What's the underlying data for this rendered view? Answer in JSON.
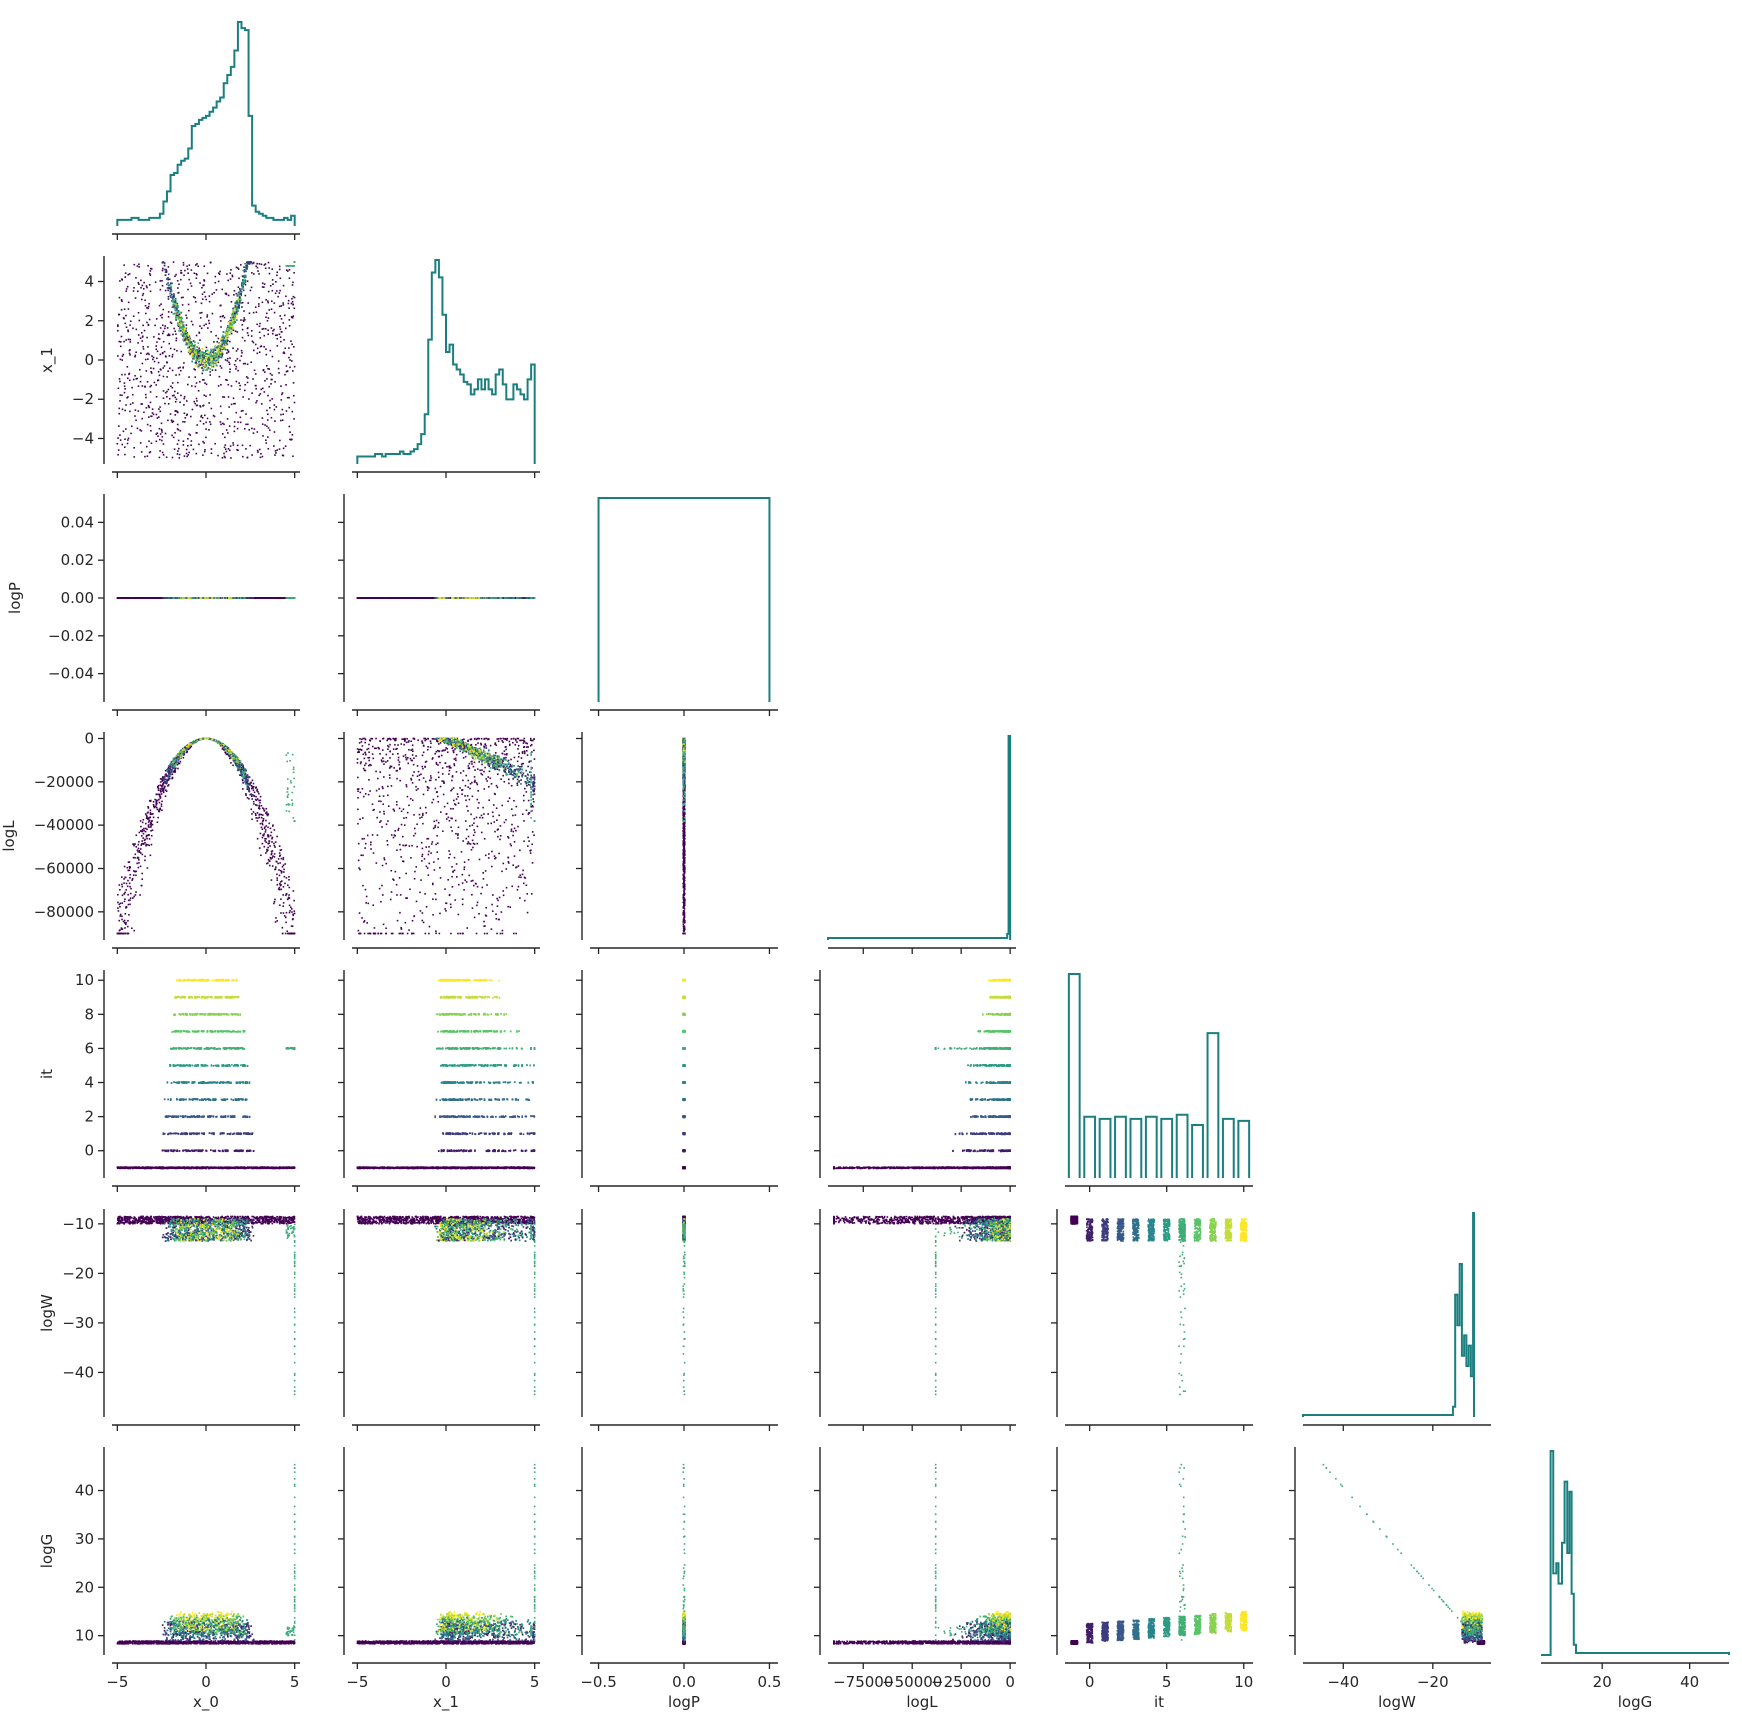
{
  "chart_data": {
    "type": "corner",
    "description_colors": {
      "hist_line": "#1b7f7f",
      "scatter_colormap": "viridis"
    },
    "variables": [
      {
        "key": "x_0",
        "label": "x_0",
        "range": [
          -5.3,
          5.3
        ],
        "ticks": [
          -5,
          0,
          5
        ],
        "tick_labels": [
          "−5",
          "0",
          "5"
        ]
      },
      {
        "key": "x_1",
        "label": "x_1",
        "range": [
          -5.3,
          5.3
        ],
        "ticks": [
          -5,
          0,
          5
        ],
        "tick_labels": [
          "−5",
          "0",
          "5"
        ],
        "y_ticks": [
          -4,
          -2,
          0,
          2,
          4
        ],
        "y_tick_labels": [
          "−4",
          "−2",
          "0",
          "2",
          "4"
        ]
      },
      {
        "key": "logP",
        "label": "logP",
        "range": [
          -0.55,
          0.55
        ],
        "ticks": [
          -0.5,
          0.0,
          0.5
        ],
        "tick_labels": [
          "−0.5",
          "0.0",
          "0.5"
        ],
        "y_range": [
          -0.055,
          0.055
        ],
        "y_ticks": [
          -0.04,
          -0.02,
          0.0,
          0.02,
          0.04
        ],
        "y_tick_labels": [
          "−0.04",
          "−0.02",
          "0.00",
          "0.02",
          "0.04"
        ]
      },
      {
        "key": "logL",
        "label": "logL",
        "range": [
          -93000,
          3000
        ],
        "ticks": [
          -75000,
          -50000,
          -25000,
          0
        ],
        "tick_labels": [
          "−75000",
          "−50000",
          "−25000",
          "0"
        ],
        "y_ticks": [
          -80000,
          -60000,
          -40000,
          -20000,
          0
        ],
        "y_tick_labels": [
          "−80000",
          "−60000",
          "−40000",
          "−20000",
          "0"
        ]
      },
      {
        "key": "it",
        "label": "it",
        "range": [
          -1.6,
          10.6
        ],
        "ticks": [
          0,
          5,
          10
        ],
        "tick_labels": [
          "0",
          "5",
          "10"
        ],
        "y_ticks": [
          0,
          2,
          4,
          6,
          8,
          10
        ],
        "y_tick_labels": [
          "0",
          "2",
          "4",
          "6",
          "8",
          "10"
        ]
      },
      {
        "key": "logW",
        "label": "logW",
        "range": [
          -49,
          -7
        ],
        "ticks": [
          -40,
          -20
        ],
        "tick_labels": [
          "−40",
          "−20"
        ],
        "y_ticks": [
          -40,
          -30,
          -20,
          -10
        ],
        "y_tick_labels": [
          "−40",
          "−30",
          "−20",
          "−10"
        ]
      },
      {
        "key": "logG",
        "label": "logG",
        "range": [
          6,
          49
        ],
        "ticks": [
          20,
          40
        ],
        "tick_labels": [
          "20",
          "40"
        ],
        "y_ticks": [
          10,
          20,
          30,
          40
        ],
        "y_tick_labels": [
          "10",
          "20",
          "30",
          "40"
        ]
      }
    ],
    "histograms": {
      "x_0": {
        "edges_range": [
          -5,
          5
        ],
        "counts": [
          3,
          3,
          3,
          3,
          4,
          4,
          3,
          3,
          3,
          4,
          4,
          4,
          6,
          12,
          17,
          25,
          26,
          30,
          32,
          33,
          38,
          49,
          50,
          52,
          53,
          54,
          56,
          58,
          61,
          63,
          70,
          74,
          78,
          86,
          100,
          97,
          96,
          54,
          10,
          7,
          6,
          5,
          4,
          4,
          3,
          3,
          3,
          4,
          3,
          5
        ]
      },
      "x_1": {
        "edges_range": [
          -5,
          5
        ],
        "counts": [
          3,
          3,
          3,
          3,
          3,
          4,
          4,
          3,
          4,
          4,
          4,
          4,
          5,
          4,
          4,
          5,
          6,
          8,
          12,
          20,
          50,
          77,
          82,
          75,
          60,
          45,
          48,
          40,
          38,
          36,
          33,
          32,
          28,
          30,
          34,
          30,
          34,
          30,
          28,
          36,
          38,
          32,
          26,
          26,
          32,
          30,
          28,
          26,
          34,
          40
        ]
      },
      "logP": {
        "edges_range": [
          -0.5,
          0.5
        ],
        "counts": [
          100
        ]
      },
      "logL": {
        "note": "single spike near 0"
      },
      "it": {
        "bins": [
          -1,
          0,
          1,
          2,
          3,
          4,
          5,
          6,
          7,
          8,
          9,
          10
        ],
        "counts": [
          100,
          30,
          29,
          30,
          29,
          30,
          29,
          31,
          26,
          71,
          29,
          28
        ]
      },
      "logW": {
        "note": "narrow multi-peaked spike between -16 and -8"
      },
      "logG": {
        "note": "narrow multi-peaked spike between 8 and 14"
      }
    }
  }
}
